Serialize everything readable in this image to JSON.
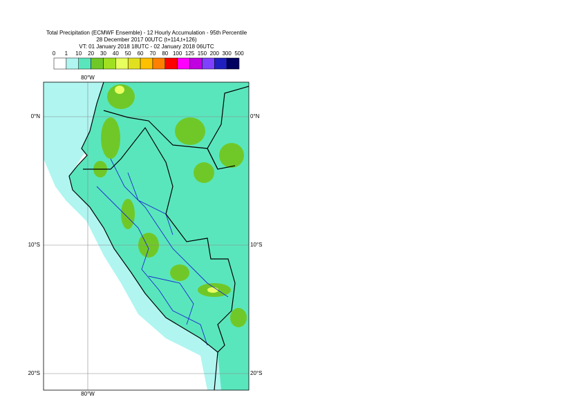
{
  "header": {
    "title": "Total Precipitation (ECMWF Ensemble) - 12 Hourly Accumulation - 95th Percentile",
    "subtitle": "28 December 2017 00UTC (t+114,t+126)",
    "valid_time": "VT: 01 January 2018 18UTC - 02 January 2018 06UTC"
  },
  "legend": {
    "labels": [
      "0",
      "1",
      "10",
      "20",
      "30",
      "40",
      "50",
      "60",
      "70",
      "80",
      "100",
      "125",
      "150",
      "200",
      "300",
      "500"
    ],
    "colors": [
      "#ffffff",
      "#b0f5f0",
      "#5ae6bc",
      "#70c828",
      "#a0e020",
      "#e8ff60",
      "#e0e020",
      "#ffc000",
      "#ff8000",
      "#ff0000",
      "#ff00ff",
      "#c000e0",
      "#8040ff",
      "#2020c0",
      "#000060"
    ]
  },
  "map": {
    "lat_labels": [
      "0°N",
      "10°S",
      "20°S"
    ],
    "lon_labels": [
      "80°W"
    ]
  }
}
